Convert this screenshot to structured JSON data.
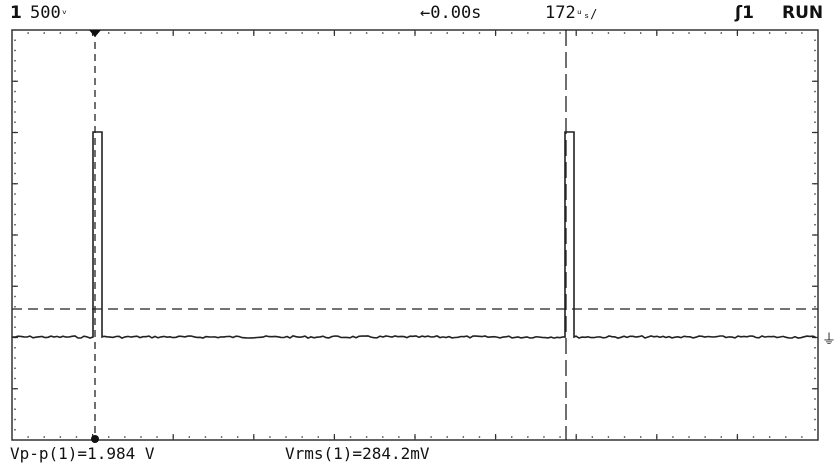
{
  "header": {
    "channel": "1",
    "scale": "500",
    "scale_unit": "ᵛ",
    "time_offset": "←0.00s",
    "timebase": "172",
    "timebase_unit": "ᵘₛ/",
    "trigger": "ʃ",
    "trigger_source": "1",
    "run_state": "RUN"
  },
  "measurements": {
    "vpp": "Vp-p(1)=1.984 V",
    "vrms": "Vrms(1)=284.2mV"
  },
  "colors": {
    "trace": "#222222",
    "grid": "#333333",
    "background": "#ffffff"
  }
}
